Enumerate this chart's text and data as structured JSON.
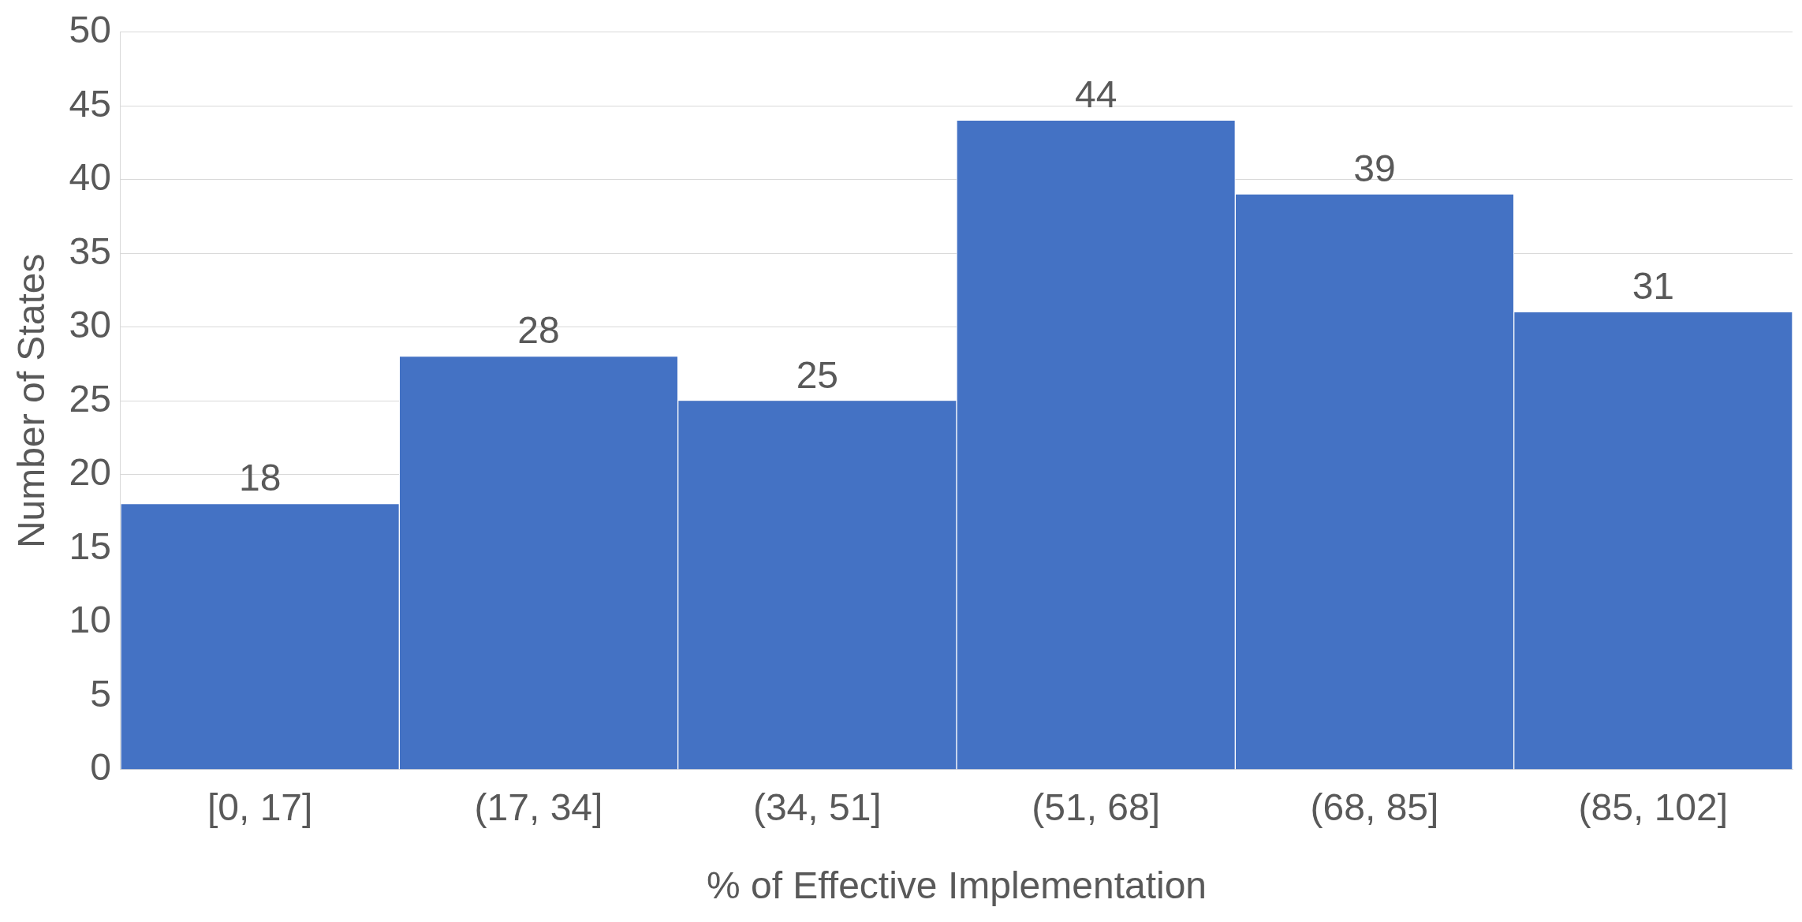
{
  "chart_data": {
    "type": "bar",
    "xlabel": "% of Effective Implementation",
    "ylabel": "Number of States",
    "categories": [
      "[0, 17]",
      "(17, 34]",
      "(34, 51]",
      "(51, 68]",
      "(68, 85]",
      "(85, 102]"
    ],
    "values": [
      18,
      28,
      25,
      44,
      39,
      31
    ],
    "color": "#4472c4",
    "ylim": [
      0,
      50
    ],
    "yticks": [
      0,
      5,
      10,
      15,
      20,
      25,
      30,
      35,
      40,
      45,
      50
    ],
    "grid": "y",
    "data_labels": true
  }
}
